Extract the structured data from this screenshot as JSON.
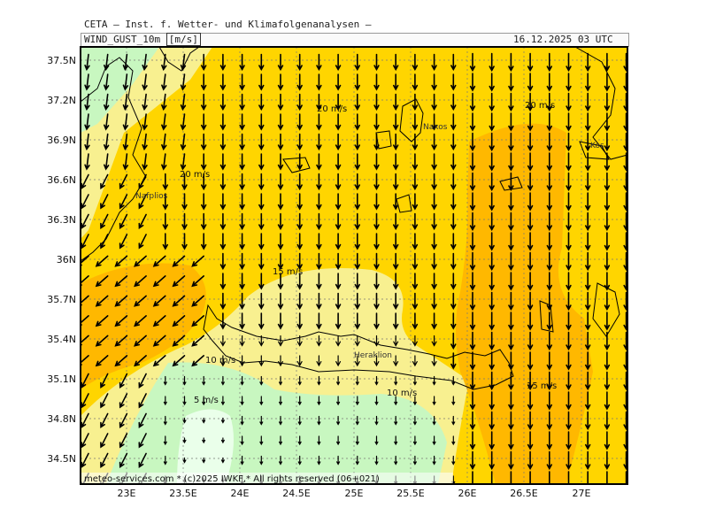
{
  "header": {
    "title": "CETA — Inst. f. Wetter- und Klimafolgenanalysen —",
    "variable": "WIND_GUST_10m",
    "unit": "[m/s]",
    "timestamp": "16.12.2025 03 UTC"
  },
  "footer": {
    "credit": "meteo-services.com * (c)2025 IWKF,* All rights reserved (06+021)"
  },
  "axes": {
    "lat_labels": [
      "37.5N",
      "37.2N",
      "36.9N",
      "36.6N",
      "36.3N",
      "36N",
      "35.7N",
      "35.4N",
      "35.1N",
      "34.8N",
      "34.5N"
    ],
    "lon_labels": [
      "23E",
      "23.5E",
      "24E",
      "24.5E",
      "25E",
      "25.5E",
      "26E",
      "26.5E",
      "27E"
    ]
  },
  "contour_labels": [
    {
      "text": "20 m/s"
    },
    {
      "text": "20 m/s"
    },
    {
      "text": "20 m/s"
    },
    {
      "text": "15 m/s"
    },
    {
      "text": "10 m/s"
    },
    {
      "text": "10 m/s"
    },
    {
      "text": "5 m/s"
    },
    {
      "text": "15 m/s"
    }
  ],
  "places": [
    "Naxos",
    "Kos",
    "Nafplios",
    "Heraklion"
  ],
  "colors": {
    "band_lt5": "#eaffea",
    "band_5_10": "#c8f7c0",
    "band_10_15": "#f8f090",
    "band_15_20": "#ffd500",
    "band_20_25": "#ffb800",
    "band_25_plus": "#ff9c00",
    "coastline": "#000000",
    "arrows": "#000000"
  }
}
